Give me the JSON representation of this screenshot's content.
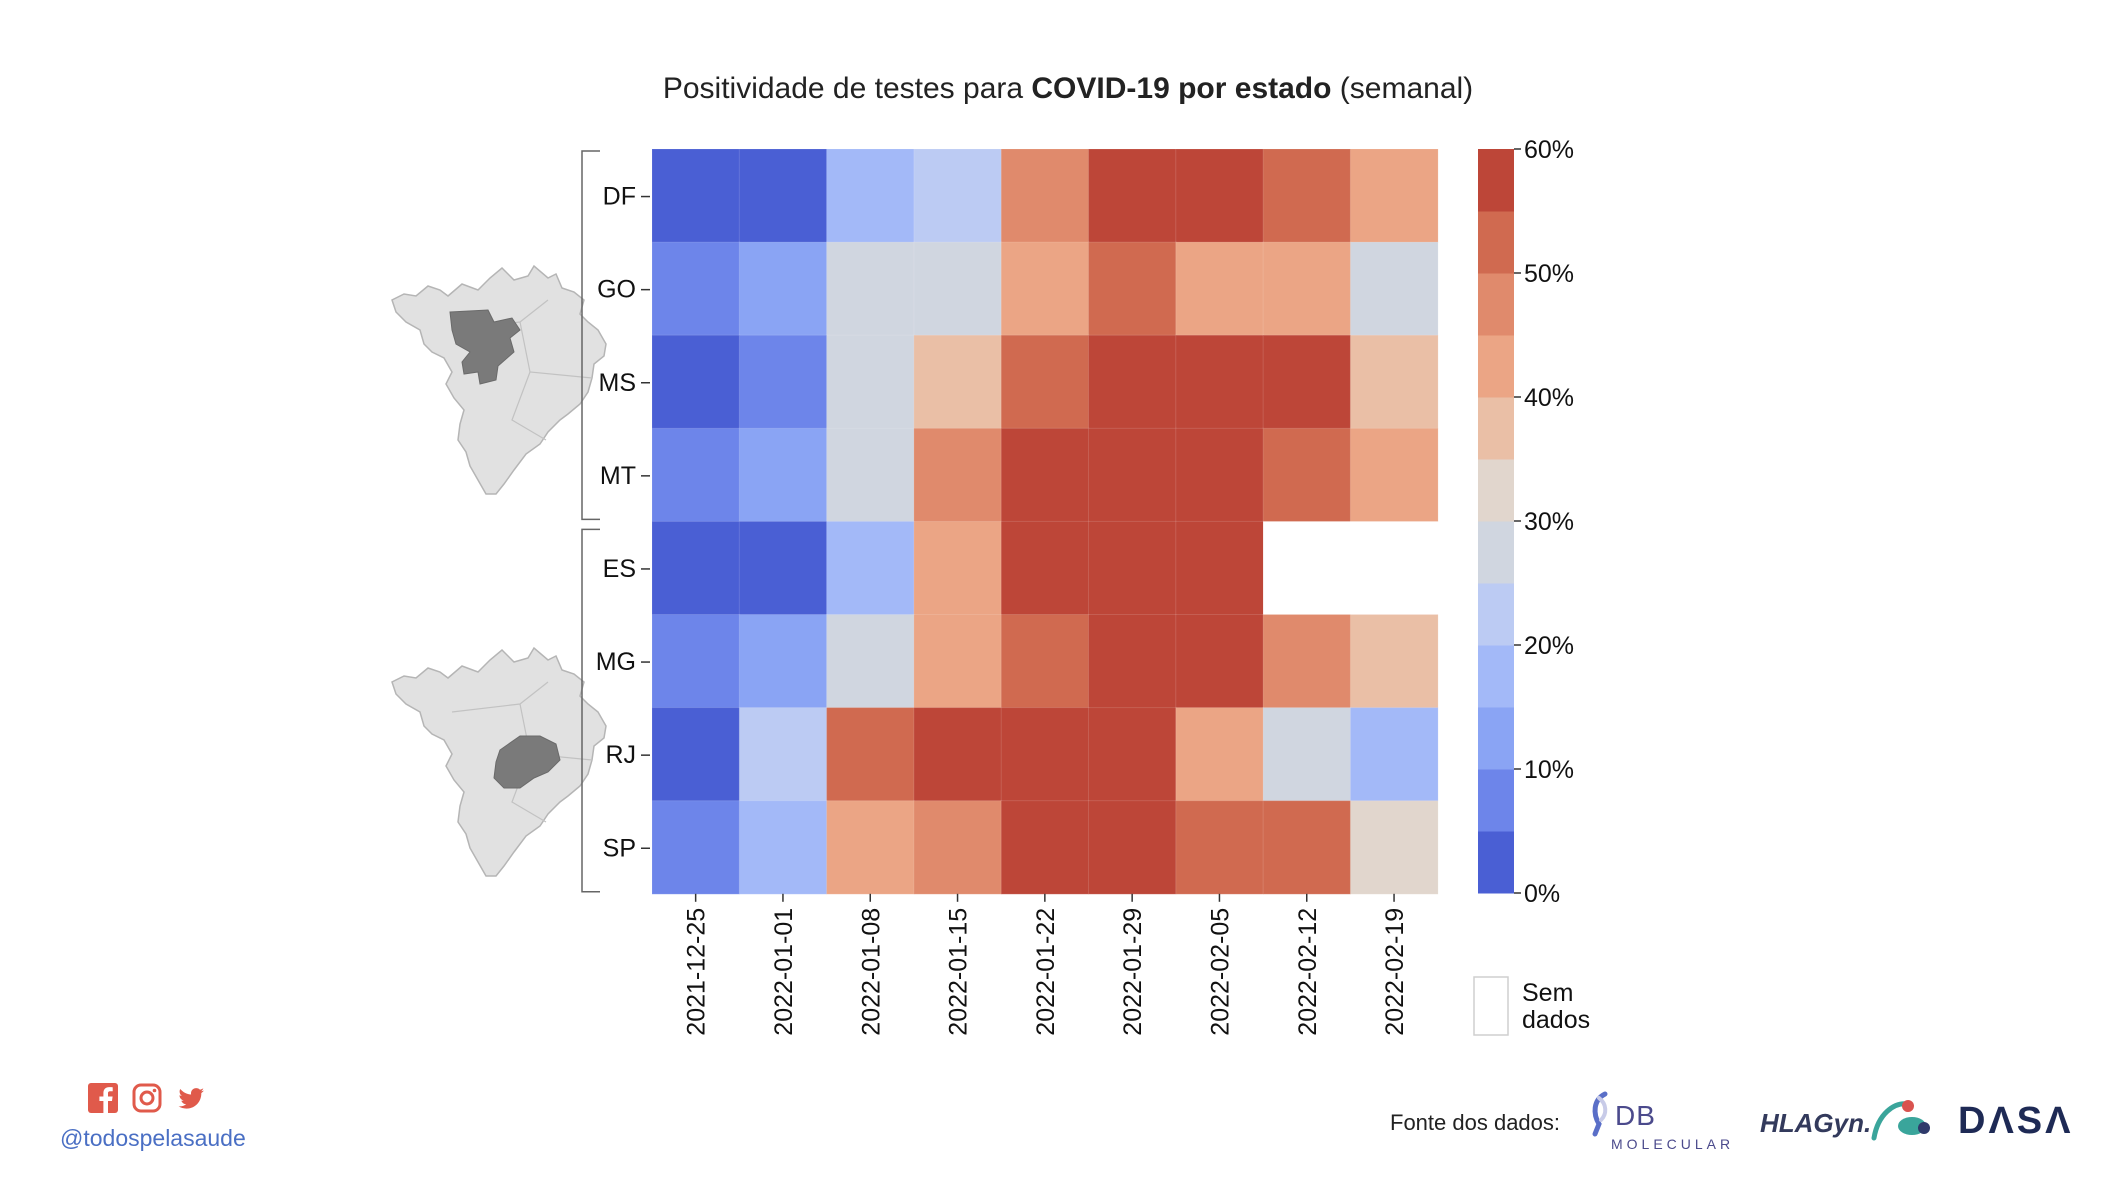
{
  "title": {
    "prefix": "Positividade de testes para ",
    "bold": "COVID-19 por estado",
    "suffix": " (semanal)"
  },
  "chart_data": {
    "type": "heatmap",
    "title": "Positividade de testes para COVID-19 por estado (semanal)",
    "x": [
      "2021-12-25",
      "2022-01-01",
      "2022-01-08",
      "2022-01-15",
      "2022-01-22",
      "2022-01-29",
      "2022-02-05",
      "2022-02-12",
      "2022-02-19"
    ],
    "y": [
      "DF",
      "GO",
      "MS",
      "MT",
      "ES",
      "MG",
      "RJ",
      "SP"
    ],
    "groups": [
      {
        "states": [
          "DF",
          "GO",
          "MS",
          "MT"
        ],
        "map_icon": "brazil-centro-oeste-map-icon"
      },
      {
        "states": [
          "ES",
          "MG",
          "RJ",
          "SP"
        ],
        "map_icon": "brazil-sudeste-map-icon"
      }
    ],
    "values": [
      [
        2,
        2,
        17,
        22,
        47,
        57,
        57,
        52,
        42
      ],
      [
        7,
        12,
        27,
        27,
        42,
        52,
        42,
        42,
        27
      ],
      [
        2,
        7,
        27,
        37,
        52,
        57,
        57,
        57,
        37
      ],
      [
        7,
        12,
        27,
        47,
        57,
        57,
        57,
        52,
        42
      ],
      [
        2,
        2,
        17,
        42,
        57,
        57,
        57,
        null,
        null
      ],
      [
        7,
        12,
        27,
        42,
        52,
        57,
        57,
        47,
        37
      ],
      [
        2,
        22,
        52,
        57,
        57,
        57,
        42,
        27,
        17
      ],
      [
        7,
        17,
        42,
        47,
        57,
        57,
        52,
        52,
        32
      ]
    ],
    "units": "%",
    "colorbar": {
      "min": 0,
      "max": 60,
      "step": 5,
      "ticks": [
        "0%",
        "10%",
        "20%",
        "30%",
        "40%",
        "50%",
        "60%"
      ],
      "colors": [
        "#4a5fd4",
        "#6d85ea",
        "#8aa4f4",
        "#a3b9f8",
        "#bccbf3",
        "#d0d6e0",
        "#e1d6cd",
        "#eabfa6",
        "#eba585",
        "#e08a6c",
        "#d06a50",
        "#bd4638"
      ]
    },
    "no_data": {
      "label_line1": "Sem",
      "label_line2": "dados",
      "color": "#ffffff"
    }
  },
  "footer": {
    "handle": "@todospelasaude",
    "source_label": "Fonte dos dados:",
    "logos": {
      "db_text": "DB",
      "db_sub": "MOLECULAR",
      "hla_text": "HLAGyn.",
      "dasa_text": "DΛSΛ"
    },
    "social_icons": [
      "facebook-icon",
      "instagram-icon",
      "twitter-icon"
    ],
    "social_color": "#e05a4b"
  }
}
